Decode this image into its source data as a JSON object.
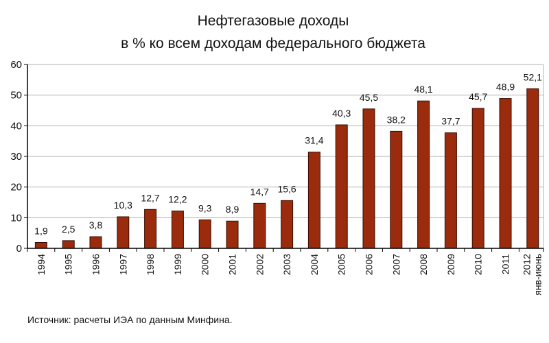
{
  "chart_data": {
    "type": "bar",
    "title": "Нефтегазовые доходы",
    "subtitle": "в % ко всем доходам федерального бюджета",
    "categories": [
      "1994",
      "1995",
      "1996",
      "1997",
      "1998",
      "1999",
      "2000",
      "2001",
      "2002",
      "2003",
      "2004",
      "2005",
      "2006",
      "2007",
      "2008",
      "2009",
      "2010",
      "2011",
      "2012"
    ],
    "category_sublabels": {
      "2012": "янв-июнь"
    },
    "values": [
      1.9,
      2.5,
      3.8,
      10.3,
      12.7,
      12.2,
      9.3,
      8.9,
      14.7,
      15.6,
      31.4,
      40.3,
      45.5,
      38.2,
      48.1,
      37.7,
      45.7,
      48.9,
      52.1
    ],
    "value_labels": [
      "1,9",
      "2,5",
      "3,8",
      "10,3",
      "12,7",
      "12,2",
      "9,3",
      "8,9",
      "14,7",
      "15,6",
      "31,4",
      "40,3",
      "45,5",
      "38,2",
      "48,1",
      "37,7",
      "45,7",
      "48,9",
      "52,1"
    ],
    "ylim": [
      0,
      60
    ],
    "yticks": [
      0,
      10,
      20,
      30,
      40,
      50,
      60
    ],
    "xlabel": "",
    "ylabel": "",
    "grid": true,
    "legend": "none",
    "colors": {
      "bar": "#9a2b0c",
      "bar_stroke": "#3a0c00",
      "grid": "#b0b0b0",
      "axis": "#000000"
    }
  },
  "source_note": "Источник: расчеты ИЭА по данным Минфина."
}
